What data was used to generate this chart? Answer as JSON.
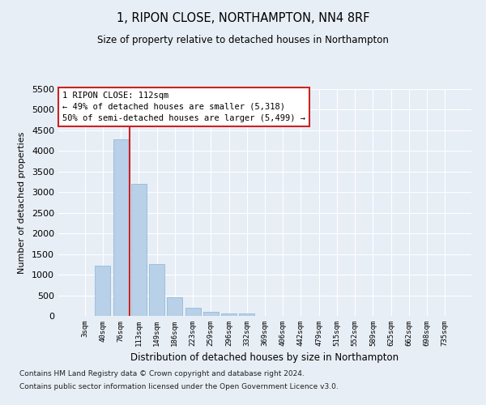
{
  "title": "1, RIPON CLOSE, NORTHAMPTON, NN4 8RF",
  "subtitle": "Size of property relative to detached houses in Northampton",
  "xlabel": "Distribution of detached houses by size in Northampton",
  "ylabel": "Number of detached properties",
  "footnote1": "Contains HM Land Registry data © Crown copyright and database right 2024.",
  "footnote2": "Contains public sector information licensed under the Open Government Licence v3.0.",
  "annotation_line1": "1 RIPON CLOSE: 112sqm",
  "annotation_line2": "← 49% of detached houses are smaller (5,318)",
  "annotation_line3": "50% of semi-detached houses are larger (5,499) →",
  "bar_color": "#b8d0e8",
  "bar_edge_color": "#8ab4d4",
  "background_color": "#e8eef6",
  "grid_color": "#ffffff",
  "annotation_box_color": "#ffffff",
  "annotation_box_edge_color": "#cc2222",
  "vline_color": "#cc2222",
  "categories": [
    "3sqm",
    "40sqm",
    "76sqm",
    "113sqm",
    "149sqm",
    "186sqm",
    "223sqm",
    "259sqm",
    "296sqm",
    "332sqm",
    "369sqm",
    "406sqm",
    "442sqm",
    "479sqm",
    "515sqm",
    "552sqm",
    "589sqm",
    "625sqm",
    "662sqm",
    "698sqm",
    "735sqm"
  ],
  "values": [
    0,
    1220,
    4280,
    3200,
    1250,
    450,
    195,
    100,
    68,
    50,
    0,
    0,
    0,
    0,
    0,
    0,
    0,
    0,
    0,
    0,
    0
  ],
  "ylim": [
    0,
    5500
  ],
  "yticks": [
    0,
    500,
    1000,
    1500,
    2000,
    2500,
    3000,
    3500,
    4000,
    4500,
    5000,
    5500
  ],
  "vline_x_index": 2.5,
  "bar_width": 0.85,
  "fig_bg": "#e8eef6"
}
